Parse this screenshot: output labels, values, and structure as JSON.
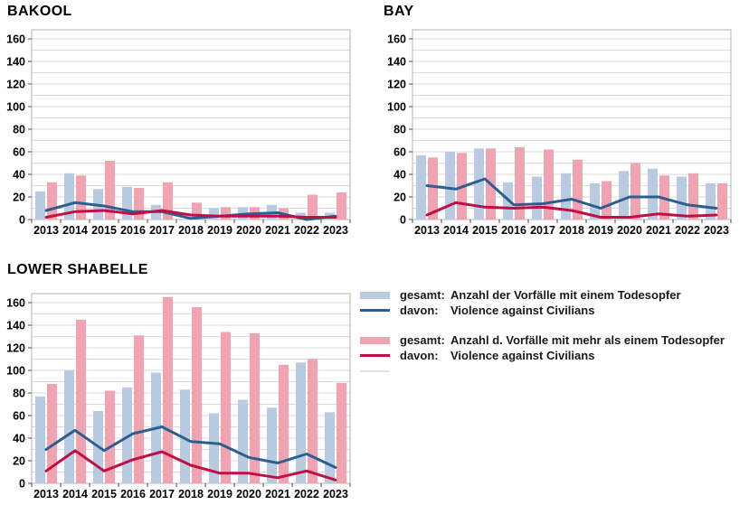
{
  "page": {
    "background": "#ffffff"
  },
  "colors": {
    "bar_single_total": "#b9cbe2",
    "bar_multi_total": "#f0a3b0",
    "line_single_vac": "#2c5f91",
    "line_multi_vac": "#c10e44",
    "gridline": "#d9d9d9",
    "plot_border": "#b3b3b3",
    "tick": "#4d4d4d",
    "text": "#000000"
  },
  "legend": {
    "items": [
      {
        "swatch": "bar",
        "color": "#b9cbe2",
        "prefix": "gesamt:",
        "label": "Anzahl der Vorfälle mit einem Todesopfer"
      },
      {
        "swatch": "line",
        "color": "#2c5f91",
        "prefix": "davon:",
        "label": "Violence against Civilians"
      },
      {
        "swatch": "bar",
        "color": "#f0a3b0",
        "prefix": "gesamt:",
        "label": "Anzahl d. Vorfälle mit mehr als einem Todesopfer"
      },
      {
        "swatch": "line",
        "color": "#c10e44",
        "prefix": "davon:",
        "label": "Violence against Civilians"
      }
    ]
  },
  "chart_data": [
    {
      "type": "bar",
      "title": "BAKOOL",
      "categories": [
        "2013",
        "2014",
        "2015",
        "2016",
        "2017",
        "2018",
        "2019",
        "2020",
        "2021",
        "2022",
        "2023"
      ],
      "ylim": [
        0,
        160
      ],
      "ytick_major": 20,
      "ytick_minor": 10,
      "grid": true,
      "legend_position": "shared-right-of-lower-chart",
      "series": [
        {
          "name": "gesamt: Anzahl der Vorfälle mit einem Todesopfer",
          "type": "bar",
          "color": "#b9cbe2",
          "values": [
            25,
            41,
            27,
            29,
            13,
            0,
            10,
            11,
            13,
            6,
            6
          ]
        },
        {
          "name": "gesamt: Anzahl d. Vorfälle mit mehr als einem Todesopfer",
          "type": "bar",
          "color": "#f0a3b0",
          "values": [
            33,
            39,
            52,
            28,
            33,
            15,
            11,
            11,
            10,
            22,
            24
          ]
        },
        {
          "name": "davon: Violence against Civilians (ein Todesopfer)",
          "type": "line",
          "color": "#2c5f91",
          "values": [
            8,
            15,
            12,
            7,
            7,
            1,
            3,
            5,
            6,
            0,
            3
          ]
        },
        {
          "name": "davon: Violence against Civilians (mehr als ein Todesopfer)",
          "type": "line",
          "color": "#c10e44",
          "values": [
            2,
            7,
            8,
            5,
            8,
            4,
            3,
            3,
            3,
            2,
            2
          ]
        }
      ]
    },
    {
      "type": "bar",
      "title": "BAY",
      "categories": [
        "2013",
        "2014",
        "2015",
        "2016",
        "2017",
        "2018",
        "2019",
        "2020",
        "2021",
        "2022",
        "2023"
      ],
      "ylim": [
        0,
        160
      ],
      "ytick_major": 20,
      "ytick_minor": 10,
      "grid": true,
      "legend_position": "shared-right-of-lower-chart",
      "series": [
        {
          "name": "gesamt: Anzahl der Vorfälle mit einem Todesopfer",
          "type": "bar",
          "color": "#b9cbe2",
          "values": [
            57,
            60,
            63,
            33,
            38,
            41,
            32,
            43,
            45,
            38,
            32
          ]
        },
        {
          "name": "gesamt: Anzahl d. Vorfälle mit mehr als einem Todesopfer",
          "type": "bar",
          "color": "#f0a3b0",
          "values": [
            55,
            59,
            63,
            64,
            62,
            53,
            34,
            50,
            39,
            41,
            32
          ]
        },
        {
          "name": "davon: Violence against Civilians (ein Todesopfer)",
          "type": "line",
          "color": "#2c5f91",
          "values": [
            30,
            27,
            36,
            13,
            14,
            18,
            10,
            20,
            20,
            13,
            10
          ]
        },
        {
          "name": "davon: Violence against Civilians (mehr als ein Todesopfer)",
          "type": "line",
          "color": "#c10e44",
          "values": [
            4,
            15,
            11,
            10,
            11,
            8,
            2,
            2,
            5,
            3,
            4
          ]
        }
      ]
    },
    {
      "type": "bar",
      "title": "LOWER SHABELLE",
      "categories": [
        "2013",
        "2014",
        "2015",
        "2016",
        "2017",
        "2018",
        "2019",
        "2020",
        "2021",
        "2022",
        "2023"
      ],
      "ylim": [
        0,
        160
      ],
      "ytick_major": 20,
      "ytick_minor": 10,
      "grid": true,
      "legend_position": "shared-right-of-lower-chart",
      "series": [
        {
          "name": "gesamt: Anzahl der Vorfälle mit einem Todesopfer",
          "type": "bar",
          "color": "#b9cbe2",
          "values": [
            77,
            100,
            64,
            85,
            98,
            83,
            62,
            74,
            67,
            107,
            63
          ]
        },
        {
          "name": "gesamt: Anzahl d. Vorfälle mit mehr als einem Todesopfer",
          "type": "bar",
          "color": "#f0a3b0",
          "values": [
            88,
            145,
            82,
            131,
            165,
            156,
            134,
            133,
            105,
            110,
            89
          ]
        },
        {
          "name": "davon: Violence against Civilians (ein Todesopfer)",
          "type": "line",
          "color": "#2c5f91",
          "values": [
            30,
            47,
            29,
            44,
            50,
            37,
            35,
            23,
            18,
            26,
            14
          ]
        },
        {
          "name": "davon: Violence against Civilians (mehr als ein Todesopfer)",
          "type": "line",
          "color": "#c10e44",
          "values": [
            11,
            29,
            11,
            21,
            28,
            16,
            9,
            9,
            5,
            11,
            3
          ]
        }
      ]
    }
  ]
}
